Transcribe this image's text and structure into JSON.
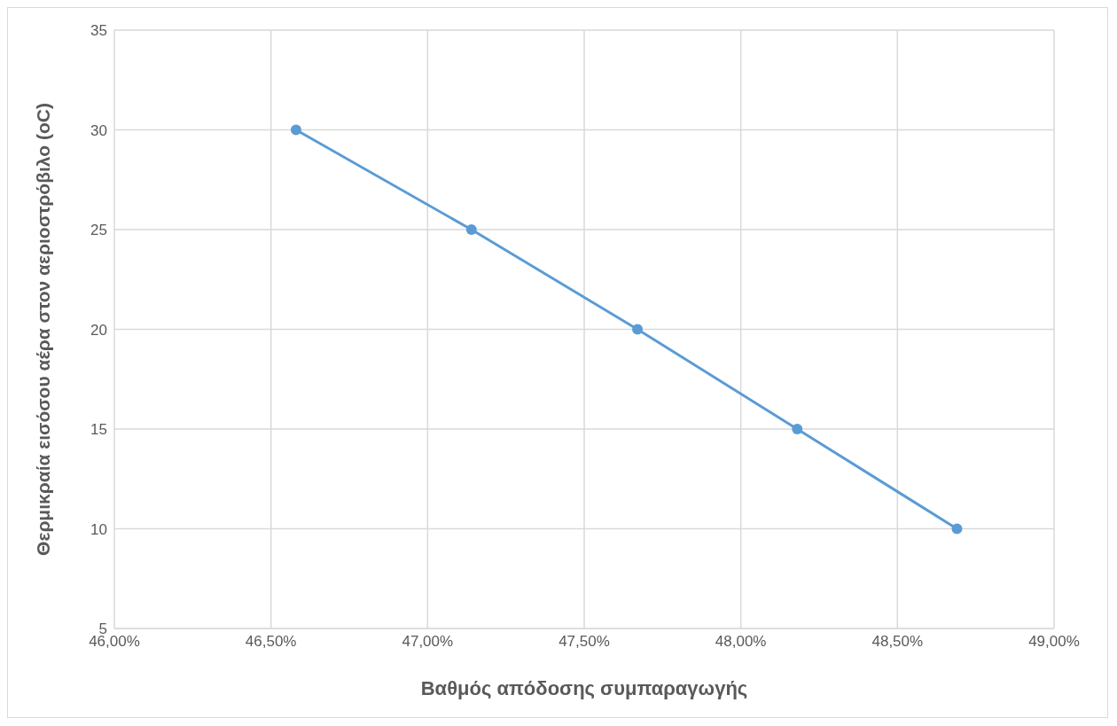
{
  "chart_data": {
    "type": "line",
    "xlabel": "Βαθμός απόδοσης συμπαραγωγής",
    "ylabel": "Θερμικραία εισόσου αέρα στον αεριοστρόβιλο (oC)",
    "x": [
      46.58,
      47.14,
      47.67,
      48.18,
      48.69
    ],
    "series": [
      {
        "color": "#5b9bd5",
        "values": [
          30,
          25,
          20,
          15,
          10
        ]
      }
    ],
    "xlim": [
      46,
      49
    ],
    "xticks": [
      {
        "value": 46,
        "label": "46,00%"
      },
      {
        "value": 46.5,
        "label": "46,50%"
      },
      {
        "value": 47,
        "label": "47,00%"
      },
      {
        "value": 47.5,
        "label": "47,50%"
      },
      {
        "value": 48,
        "label": "48,00%"
      },
      {
        "value": 48.5,
        "label": "48,50%"
      },
      {
        "value": 49,
        "label": "49,00%"
      }
    ],
    "ylim": [
      5,
      35
    ],
    "yticks": [
      5,
      10,
      15,
      20,
      25,
      30,
      35
    ],
    "grid": true,
    "marker": "circle",
    "line_style": "solid"
  }
}
